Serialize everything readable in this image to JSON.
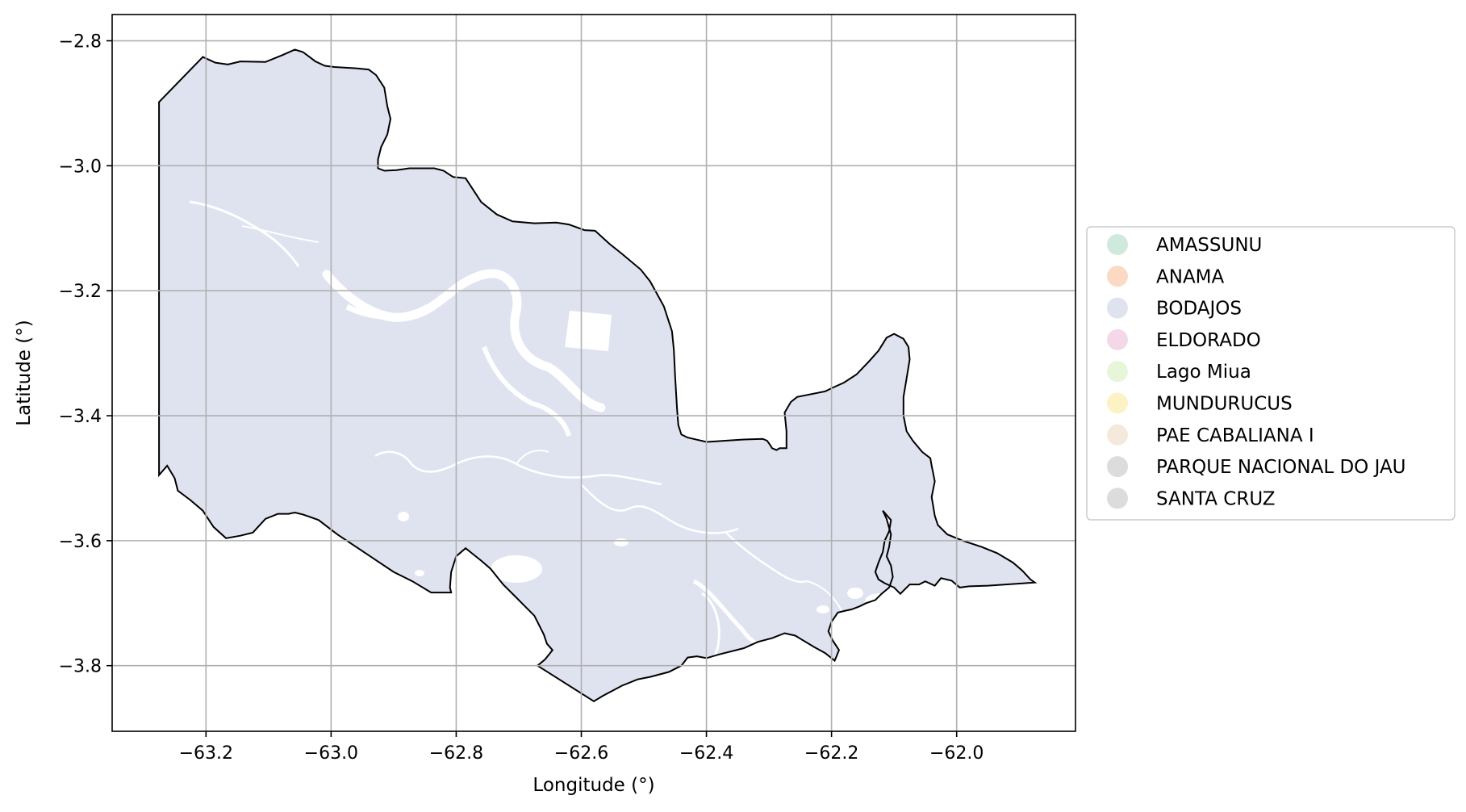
{
  "chart_data": {
    "type": "map",
    "xlabel": "Longitude (°)",
    "ylabel": "Latitude (°)",
    "xlim": [
      -63.35,
      -61.81
    ],
    "ylim": [
      -3.905,
      -2.758
    ],
    "grid": true,
    "x_ticks": [
      {
        "value": -63.2,
        "label": "−63.2"
      },
      {
        "value": -63.0,
        "label": "−63.0"
      },
      {
        "value": -62.8,
        "label": "−62.8"
      },
      {
        "value": -62.6,
        "label": "−62.6"
      },
      {
        "value": -62.4,
        "label": "−62.4"
      },
      {
        "value": -62.2,
        "label": "−62.2"
      },
      {
        "value": -62.0,
        "label": "−62.0"
      }
    ],
    "y_ticks": [
      {
        "value": -2.8,
        "label": "−2.8"
      },
      {
        "value": -3.0,
        "label": "−3.0"
      },
      {
        "value": -3.2,
        "label": "−3.2"
      },
      {
        "value": -3.4,
        "label": "−3.4"
      },
      {
        "value": -3.6,
        "label": "−3.6"
      },
      {
        "value": -3.8,
        "label": "−3.8"
      }
    ],
    "legend_position": "right",
    "legend": [
      {
        "label": "AMASSUNU",
        "color": "#cfeadc"
      },
      {
        "label": "ANAMA",
        "color": "#fbd9c3"
      },
      {
        "label": "BODAJOS",
        "color": "#dfe3f0"
      },
      {
        "label": "ELDORADO",
        "color": "#f4d7e8"
      },
      {
        "label": "Lago Miua",
        "color": "#e7f5d8"
      },
      {
        "label": "MUNDURUCUS",
        "color": "#fdf2c4"
      },
      {
        "label": "PAE CABALIANA I",
        "color": "#f4e9da"
      },
      {
        "label": "PARQUE NACIONAL DO JAU",
        "color": "#dcdcdc"
      },
      {
        "label": "SANTA CRUZ",
        "color": "#dcdcdc"
      }
    ],
    "region": {
      "name": "BODAJOS",
      "fill": "#dfe3f0",
      "edge": "#000000",
      "outline": [
        [
          -63.275,
          -2.898
        ],
        [
          -63.205,
          -2.826
        ],
        [
          -63.185,
          -2.835
        ],
        [
          -63.165,
          -2.838
        ],
        [
          -63.145,
          -2.833
        ],
        [
          -63.105,
          -2.834
        ],
        [
          -63.078,
          -2.823
        ],
        [
          -63.058,
          -2.814
        ],
        [
          -63.045,
          -2.818
        ],
        [
          -63.025,
          -2.833
        ],
        [
          -63.01,
          -2.84
        ],
        [
          -62.995,
          -2.842
        ],
        [
          -62.96,
          -2.844
        ],
        [
          -62.94,
          -2.846
        ],
        [
          -62.928,
          -2.855
        ],
        [
          -62.915,
          -2.875
        ],
        [
          -62.91,
          -2.905
        ],
        [
          -62.905,
          -2.925
        ],
        [
          -62.91,
          -2.95
        ],
        [
          -62.92,
          -2.97
        ],
        [
          -62.925,
          -2.99
        ],
        [
          -62.925,
          -3.004
        ],
        [
          -62.915,
          -3.008
        ],
        [
          -62.895,
          -3.007
        ],
        [
          -62.875,
          -3.004
        ],
        [
          -62.858,
          -3.004
        ],
        [
          -62.835,
          -3.004
        ],
        [
          -62.82,
          -3.008
        ],
        [
          -62.805,
          -3.018
        ],
        [
          -62.785,
          -3.02
        ],
        [
          -62.76,
          -3.058
        ],
        [
          -62.735,
          -3.078
        ],
        [
          -62.71,
          -3.089
        ],
        [
          -62.675,
          -3.092
        ],
        [
          -62.64,
          -3.091
        ],
        [
          -62.62,
          -3.094
        ],
        [
          -62.595,
          -3.103
        ],
        [
          -62.578,
          -3.104
        ],
        [
          -62.555,
          -3.125
        ],
        [
          -62.535,
          -3.141
        ],
        [
          -62.505,
          -3.166
        ],
        [
          -62.49,
          -3.185
        ],
        [
          -62.468,
          -3.225
        ],
        [
          -62.455,
          -3.265
        ],
        [
          -62.452,
          -3.295
        ],
        [
          -62.45,
          -3.338
        ],
        [
          -62.447,
          -3.388
        ],
        [
          -62.445,
          -3.415
        ],
        [
          -62.44,
          -3.43
        ],
        [
          -62.43,
          -3.435
        ],
        [
          -62.4,
          -3.442
        ],
        [
          -62.37,
          -3.44
        ],
        [
          -62.34,
          -3.438
        ],
        [
          -62.31,
          -3.437
        ],
        [
          -62.303,
          -3.44
        ],
        [
          -62.298,
          -3.447
        ],
        [
          -62.295,
          -3.452
        ],
        [
          -62.288,
          -3.455
        ],
        [
          -62.283,
          -3.452
        ],
        [
          -62.272,
          -3.452
        ],
        [
          -62.272,
          -3.425
        ],
        [
          -62.275,
          -3.395
        ],
        [
          -62.265,
          -3.378
        ],
        [
          -62.255,
          -3.37
        ],
        [
          -62.21,
          -3.361
        ],
        [
          -62.2,
          -3.356
        ],
        [
          -62.18,
          -3.347
        ],
        [
          -62.16,
          -3.334
        ],
        [
          -62.14,
          -3.313
        ],
        [
          -62.125,
          -3.296
        ],
        [
          -62.112,
          -3.275
        ],
        [
          -62.1,
          -3.269
        ],
        [
          -62.085,
          -3.277
        ],
        [
          -62.077,
          -3.29
        ],
        [
          -62.075,
          -3.31
        ],
        [
          -62.08,
          -3.34
        ],
        [
          -62.085,
          -3.37
        ],
        [
          -62.085,
          -3.4
        ],
        [
          -62.08,
          -3.425
        ],
        [
          -62.07,
          -3.44
        ],
        [
          -62.055,
          -3.458
        ],
        [
          -62.042,
          -3.468
        ],
        [
          -62.04,
          -3.48
        ],
        [
          -62.035,
          -3.505
        ],
        [
          -62.04,
          -3.53
        ],
        [
          -62.035,
          -3.56
        ],
        [
          -62.03,
          -3.575
        ],
        [
          -62.015,
          -3.59
        ],
        [
          -61.99,
          -3.6
        ],
        [
          -61.96,
          -3.61
        ],
        [
          -61.935,
          -3.62
        ],
        [
          -61.91,
          -3.635
        ],
        [
          -61.895,
          -3.648
        ],
        [
          -61.882,
          -3.662
        ],
        [
          -61.875,
          -3.667
        ],
        [
          -61.95,
          -3.672
        ],
        [
          -61.98,
          -3.673
        ],
        [
          -61.995,
          -3.675
        ],
        [
          -62.008,
          -3.664
        ],
        [
          -62.025,
          -3.66
        ],
        [
          -62.035,
          -3.672
        ],
        [
          -62.05,
          -3.665
        ],
        [
          -62.06,
          -3.67
        ],
        [
          -62.075,
          -3.67
        ],
        [
          -62.09,
          -3.685
        ],
        [
          -62.1,
          -3.675
        ],
        [
          -62.115,
          -3.668
        ],
        [
          -62.125,
          -3.662
        ],
        [
          -62.13,
          -3.65
        ],
        [
          -62.125,
          -3.635
        ],
        [
          -62.118,
          -3.618
        ],
        [
          -62.115,
          -3.6
        ],
        [
          -62.108,
          -3.585
        ],
        [
          -62.105,
          -3.567
        ],
        [
          -62.118,
          -3.552
        ],
        [
          -62.112,
          -3.565
        ],
        [
          -62.105,
          -3.59
        ],
        [
          -62.108,
          -3.61
        ],
        [
          -62.112,
          -3.625
        ],
        [
          -62.105,
          -3.64
        ],
        [
          -62.102,
          -3.658
        ],
        [
          -62.108,
          -3.675
        ],
        [
          -62.12,
          -3.685
        ],
        [
          -62.13,
          -3.695
        ],
        [
          -62.145,
          -3.7
        ],
        [
          -62.155,
          -3.705
        ],
        [
          -62.168,
          -3.71
        ],
        [
          -62.178,
          -3.712
        ],
        [
          -62.19,
          -3.715
        ],
        [
          -62.2,
          -3.73
        ],
        [
          -62.205,
          -3.745
        ],
        [
          -62.198,
          -3.76
        ],
        [
          -62.188,
          -3.775
        ],
        [
          -62.192,
          -3.785
        ],
        [
          -62.195,
          -3.792
        ],
        [
          -62.21,
          -3.78
        ],
        [
          -62.228,
          -3.77
        ],
        [
          -62.248,
          -3.758
        ],
        [
          -62.258,
          -3.752
        ],
        [
          -62.275,
          -3.748
        ],
        [
          -62.295,
          -3.756
        ],
        [
          -62.318,
          -3.762
        ],
        [
          -62.34,
          -3.772
        ],
        [
          -62.38,
          -3.782
        ],
        [
          -62.4,
          -3.788
        ],
        [
          -62.415,
          -3.785
        ],
        [
          -62.43,
          -3.787
        ],
        [
          -62.44,
          -3.8
        ],
        [
          -62.46,
          -3.81
        ],
        [
          -62.49,
          -3.818
        ],
        [
          -62.51,
          -3.822
        ],
        [
          -62.535,
          -3.832
        ],
        [
          -62.565,
          -3.848
        ],
        [
          -62.58,
          -3.857
        ],
        [
          -62.67,
          -3.8
        ],
        [
          -62.658,
          -3.79
        ],
        [
          -62.646,
          -3.775
        ],
        [
          -62.655,
          -3.765
        ],
        [
          -62.66,
          -3.75
        ],
        [
          -62.665,
          -3.74
        ],
        [
          -62.675,
          -3.72
        ],
        [
          -62.69,
          -3.705
        ],
        [
          -62.705,
          -3.69
        ],
        [
          -62.725,
          -3.67
        ],
        [
          -62.745,
          -3.645
        ],
        [
          -62.76,
          -3.632
        ],
        [
          -62.775,
          -3.62
        ],
        [
          -62.785,
          -3.612
        ],
        [
          -62.8,
          -3.625
        ],
        [
          -62.808,
          -3.65
        ],
        [
          -62.81,
          -3.675
        ],
        [
          -62.808,
          -3.683
        ],
        [
          -62.84,
          -3.683
        ],
        [
          -62.87,
          -3.665
        ],
        [
          -62.9,
          -3.65
        ],
        [
          -62.93,
          -3.63
        ],
        [
          -62.96,
          -3.61
        ],
        [
          -62.99,
          -3.59
        ],
        [
          -63.02,
          -3.567
        ],
        [
          -63.045,
          -3.558
        ],
        [
          -63.058,
          -3.555
        ],
        [
          -63.068,
          -3.557
        ],
        [
          -63.085,
          -3.557
        ],
        [
          -63.105,
          -3.565
        ],
        [
          -63.125,
          -3.587
        ],
        [
          -63.145,
          -3.592
        ],
        [
          -63.168,
          -3.596
        ],
        [
          -63.188,
          -3.578
        ],
        [
          -63.205,
          -3.552
        ],
        [
          -63.225,
          -3.535
        ],
        [
          -63.245,
          -3.52
        ],
        [
          -63.25,
          -3.5
        ],
        [
          -63.262,
          -3.48
        ],
        [
          -63.275,
          -3.495
        ],
        [
          -63.275,
          -3.2
        ],
        [
          -63.275,
          -2.898
        ]
      ]
    }
  }
}
